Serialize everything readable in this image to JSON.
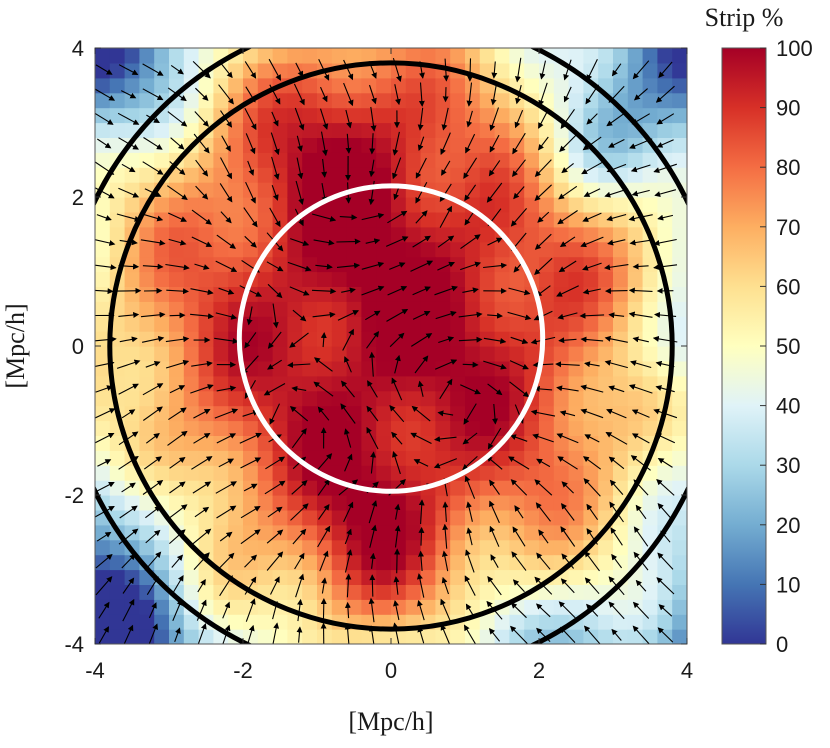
{
  "chart_data": {
    "type": "heatmap",
    "title": "",
    "xlabel": "[Mpc/h]",
    "ylabel": "[Mpc/h]",
    "xlim": [
      -4,
      4
    ],
    "ylim": [
      -4,
      4
    ],
    "x_ticks": [
      "-4",
      "-2",
      "0",
      "2",
      "4"
    ],
    "y_ticks": [
      "4",
      "2",
      "0",
      "-2",
      "-4"
    ],
    "colorbar": {
      "title": "Strip %",
      "range": [
        0,
        100
      ],
      "ticks": [
        "100",
        "90",
        "80",
        "70",
        "60",
        "50",
        "40",
        "30",
        "20",
        "10",
        "0"
      ],
      "colormap_stops": [
        "#313695",
        "#4575b4",
        "#74add1",
        "#abd9e9",
        "#e0f3f8",
        "#ffffbf",
        "#fee090",
        "#fdae61",
        "#f46d43",
        "#d73027",
        "#a50026"
      ]
    },
    "circles": [
      {
        "center": [
          0,
          0.1
        ],
        "radius": 2.05,
        "color": "#ffffff"
      },
      {
        "center": [
          0,
          0
        ],
        "radius": 3.8,
        "color": "#000000"
      },
      {
        "center": [
          0,
          0
        ],
        "radius": 4.45,
        "color": "#000000"
      }
    ],
    "field": {
      "core_center": [
        0,
        0.3
      ],
      "core_radius": 2.3,
      "grid_step": 0.2,
      "vector_field": "quiver"
    }
  }
}
